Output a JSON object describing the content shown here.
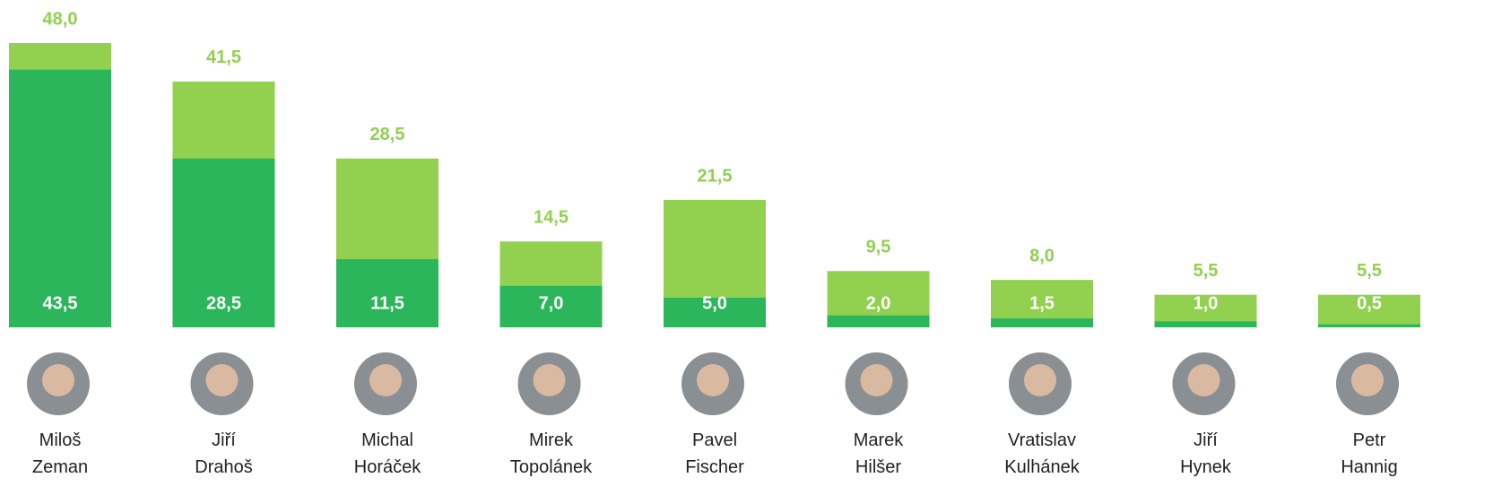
{
  "chart_data": {
    "type": "overlap-bar",
    "categories": [
      "Miloš Zeman",
      "Jiří Drahoš",
      "Michal Horáček",
      "Mirek Topolánek",
      "Pavel Fischer",
      "Marek Hilšer",
      "Vratislav Kulhánek",
      "Jiří Hynek",
      "Petr Hannig"
    ],
    "series": [
      {
        "color": "#92d050",
        "values": [
          48.0,
          41.5,
          28.5,
          14.5,
          21.5,
          9.5,
          8.0,
          5.5,
          5.5
        ],
        "value_labels": [
          "48,0",
          "41,5",
          "28,5",
          "14,5",
          "21,5",
          "9,5",
          "8,0",
          "5,5",
          "5,5"
        ]
      },
      {
        "color": "#2bb65b",
        "values": [
          43.5,
          28.5,
          11.5,
          7.0,
          5.0,
          2.0,
          1.5,
          1.0,
          0.5
        ],
        "value_labels": [
          "43,5",
          "28,5",
          "11,5",
          "7,0",
          "5,0",
          "2,0",
          "1,5",
          "1,0",
          "0,5"
        ]
      }
    ],
    "ylim": [
      0,
      48
    ]
  }
}
